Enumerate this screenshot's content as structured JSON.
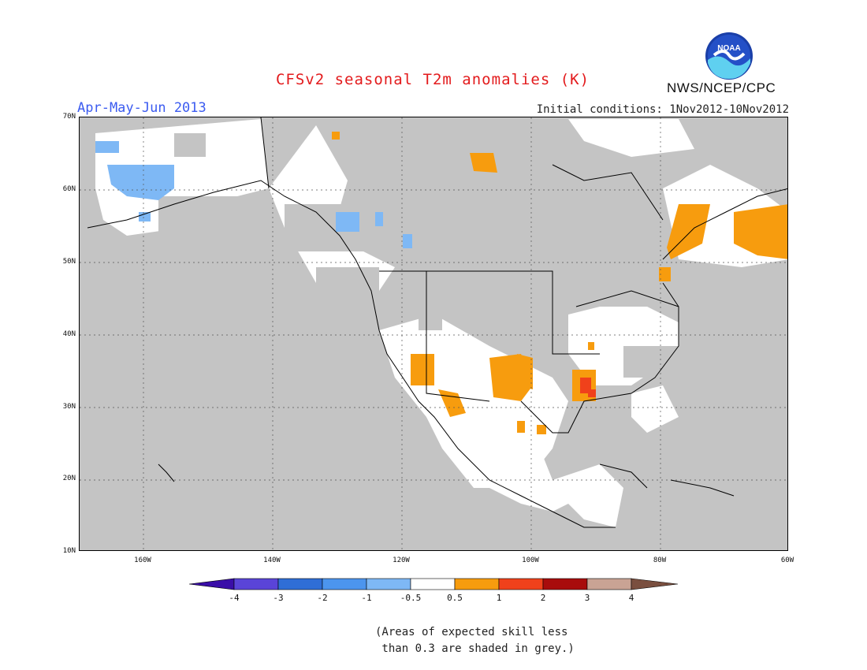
{
  "header": {
    "title": "CFSv2 seasonal T2m anomalies (K)",
    "period": "Apr-May-Jun 2013",
    "initial_conditions": "Initial conditions: 1Nov2012-10Nov2012",
    "agency": "NWS/NCEP/CPC",
    "logo_text": "NOAA"
  },
  "map": {
    "lat_labels": [
      "70N",
      "60N",
      "50N",
      "40N",
      "30N",
      "20N",
      "10N"
    ],
    "lon_labels": [
      "160W",
      "140W",
      "120W",
      "100W",
      "80W",
      "60W"
    ],
    "colors": {
      "ocean": "#c4c4c4",
      "land": "#ffffff",
      "grey_skill": "#c4c4c4",
      "anom_pos_05_1": "#f79c0e",
      "anom_pos_1_2": "#f0411b",
      "anom_pos_2_3": "#c40d0d",
      "anom_neg_05_1": "#7eb8f5",
      "anom_neg_1_2": "#4a97ee"
    }
  },
  "colorbar": {
    "labels": [
      "-4",
      "-3",
      "-2",
      "-1",
      "-0.5",
      "0.5",
      "1",
      "2",
      "3",
      "4"
    ],
    "colors": [
      "#3a0ea8",
      "#5a44d8",
      "#2f6ed6",
      "#4c95ee",
      "#7eb8f5",
      "#ffffff",
      "#f79c0e",
      "#f0411b",
      "#a80c0c",
      "#c9a394",
      "#7a4f3f"
    ]
  },
  "footnote": {
    "line1": "(Areas of expected skill less",
    "line2": " than 0.3 are shaded in grey.)"
  }
}
